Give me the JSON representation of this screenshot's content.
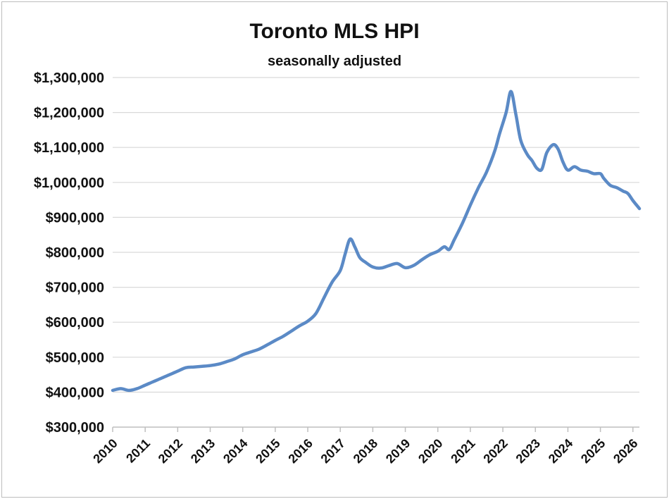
{
  "chart_data": {
    "type": "line",
    "title": "Toronto MLS HPI",
    "subtitle": "seasonally adjusted",
    "xlabel": "",
    "ylabel": "",
    "xlim": [
      2010,
      2026.2
    ],
    "ylim": [
      300000,
      1300000
    ],
    "y_tick_labels": [
      "$300,000",
      "$400,000",
      "$500,000",
      "$600,000",
      "$700,000",
      "$800,000",
      "$900,000",
      "$1,000,000",
      "$1,100,000",
      "$1,200,000",
      "$1,300,000"
    ],
    "y_tick_values": [
      300000,
      400000,
      500000,
      600000,
      700000,
      800000,
      900000,
      1000000,
      1100000,
      1200000,
      1300000
    ],
    "x_tick_labels": [
      "2010",
      "2011",
      "2012",
      "2013",
      "2014",
      "2015",
      "2016",
      "2017",
      "2018",
      "2019",
      "2020",
      "2021",
      "2022",
      "2023",
      "2024",
      "2025",
      "2026"
    ],
    "x_tick_values": [
      2010,
      2011,
      2012,
      2013,
      2014,
      2015,
      2016,
      2017,
      2018,
      2019,
      2020,
      2021,
      2022,
      2023,
      2024,
      2025,
      2026
    ],
    "grid": "horizontal",
    "legend": "none",
    "line_color": "#5b8ac6",
    "series": [
      {
        "x": [
          2010.0,
          2010.25,
          2010.5,
          2010.75,
          2011.0,
          2011.25,
          2011.5,
          2011.75,
          2012.0,
          2012.25,
          2012.5,
          2012.75,
          2013.0,
          2013.25,
          2013.5,
          2013.75,
          2014.0,
          2014.25,
          2014.5,
          2014.75,
          2015.0,
          2015.25,
          2015.5,
          2015.75,
          2016.0,
          2016.25,
          2016.5,
          2016.75,
          2017.0,
          2017.15,
          2017.3,
          2017.45,
          2017.6,
          2017.8,
          2018.0,
          2018.25,
          2018.5,
          2018.75,
          2019.0,
          2019.25,
          2019.5,
          2019.75,
          2020.0,
          2020.2,
          2020.35,
          2020.5,
          2020.75,
          2021.0,
          2021.25,
          2021.5,
          2021.75,
          2021.9,
          2022.1,
          2022.25,
          2022.4,
          2022.55,
          2022.75,
          2022.9,
          2023.05,
          2023.2,
          2023.35,
          2023.55,
          2023.7,
          2023.85,
          2024.0,
          2024.2,
          2024.4,
          2024.6,
          2024.8,
          2025.0,
          2025.1,
          2025.3,
          2025.5,
          2025.7,
          2025.85,
          2026.0,
          2026.2
        ],
        "values": [
          405000,
          410000,
          405000,
          410000,
          420000,
          430000,
          440000,
          450000,
          460000,
          470000,
          472000,
          474000,
          476000,
          480000,
          487000,
          495000,
          507000,
          515000,
          523000,
          535000,
          548000,
          560000,
          575000,
          590000,
          603000,
          625000,
          670000,
          715000,
          748000,
          795000,
          838000,
          815000,
          785000,
          770000,
          758000,
          755000,
          762000,
          768000,
          756000,
          762000,
          778000,
          793000,
          803000,
          816000,
          808000,
          835000,
          882000,
          935000,
          985000,
          1030000,
          1090000,
          1140000,
          1200000,
          1260000,
          1195000,
          1120000,
          1080000,
          1062000,
          1040000,
          1038000,
          1085000,
          1108000,
          1095000,
          1058000,
          1035000,
          1045000,
          1035000,
          1032000,
          1025000,
          1025000,
          1012000,
          992000,
          985000,
          975000,
          968000,
          948000,
          925000
        ]
      }
    ]
  }
}
